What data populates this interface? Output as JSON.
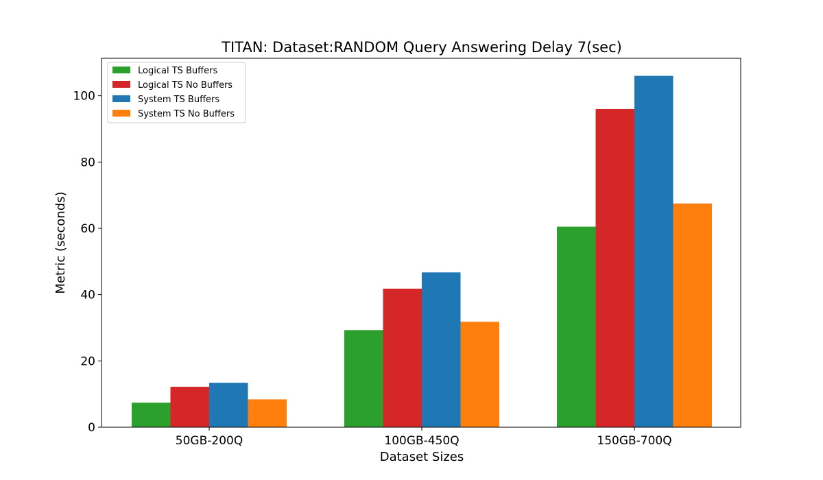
{
  "chart_data": {
    "type": "bar",
    "title": "TITAN: Dataset:RANDOM Query Answering Delay 7(sec)",
    "xlabel": "Dataset Sizes",
    "ylabel": "Metric (seconds)",
    "categories": [
      "50GB-200Q",
      "100GB-450Q",
      "150GB-700Q"
    ],
    "series": [
      {
        "name": "Logical TS Buffers",
        "color": "#2ca02c",
        "values": [
          7.4,
          29.3,
          60.5
        ]
      },
      {
        "name": "Logical TS No Buffers",
        "color": "#d62728",
        "values": [
          12.2,
          41.8,
          96.0
        ]
      },
      {
        "name": "System TS Buffers",
        "color": "#1f77b4",
        "values": [
          13.4,
          46.7,
          106.0
        ]
      },
      {
        "name": "System TS No Buffers",
        "color": "#ff7f0e",
        "values": [
          8.4,
          31.8,
          67.5
        ]
      }
    ],
    "ylim": [
      0,
      111.3
    ],
    "yticks": [
      0,
      20,
      40,
      60,
      80,
      100
    ],
    "grid": false,
    "legend_position": "top-left"
  }
}
